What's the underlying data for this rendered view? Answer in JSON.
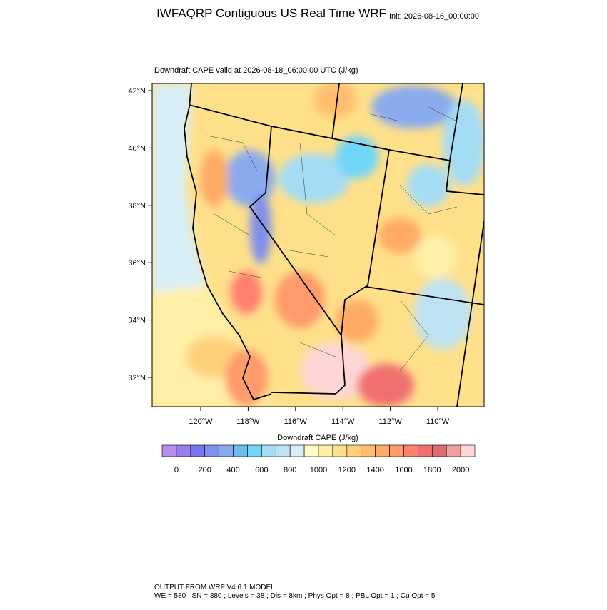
{
  "header": {
    "title": "IWFAQRP Contiguous US Real Time WRF",
    "init": "Init: 2026-08-16_00:00:00"
  },
  "map": {
    "subtitle": "Downdraft CAPE valid at 2026-08-18_06:00:00 UTC   (J/kg)",
    "lat_labels": [
      "42°N",
      "40°N",
      "38°N",
      "36°N",
      "34°N",
      "32°N"
    ],
    "lon_labels": [
      "120°W",
      "118°W",
      "116°W",
      "114°W",
      "112°W",
      "110°W"
    ]
  },
  "colorbar": {
    "title": "Downdraft CAPE  (J/kg)",
    "ticks": [
      0,
      200,
      400,
      600,
      800,
      1000,
      1200,
      1400,
      1600,
      1800,
      2000
    ],
    "colors": [
      "#b98af0",
      "#9c7af2",
      "#7a74ee",
      "#7e90ea",
      "#8aaaee",
      "#6ebcf0",
      "#6fd6f8",
      "#a4dcf4",
      "#bde2f2",
      "#d8eef6",
      "#fffbc8",
      "#fff0a8",
      "#ffe08a",
      "#ffd07a",
      "#ffbe6e",
      "#ffaa66",
      "#ff9a6a",
      "#ff8070",
      "#f07070",
      "#e06a72",
      "#eca0a2",
      "#ffd6d6"
    ]
  },
  "footer": {
    "line1": "OUTPUT FROM WRF V4.6.1 MODEL",
    "line2": "WE = 580 ; SN = 380 ; Levels = 38 ; Dis = 8km ; Phys Opt = 8 ; PBL Opt = 1 ; Cu Opt = 5"
  }
}
